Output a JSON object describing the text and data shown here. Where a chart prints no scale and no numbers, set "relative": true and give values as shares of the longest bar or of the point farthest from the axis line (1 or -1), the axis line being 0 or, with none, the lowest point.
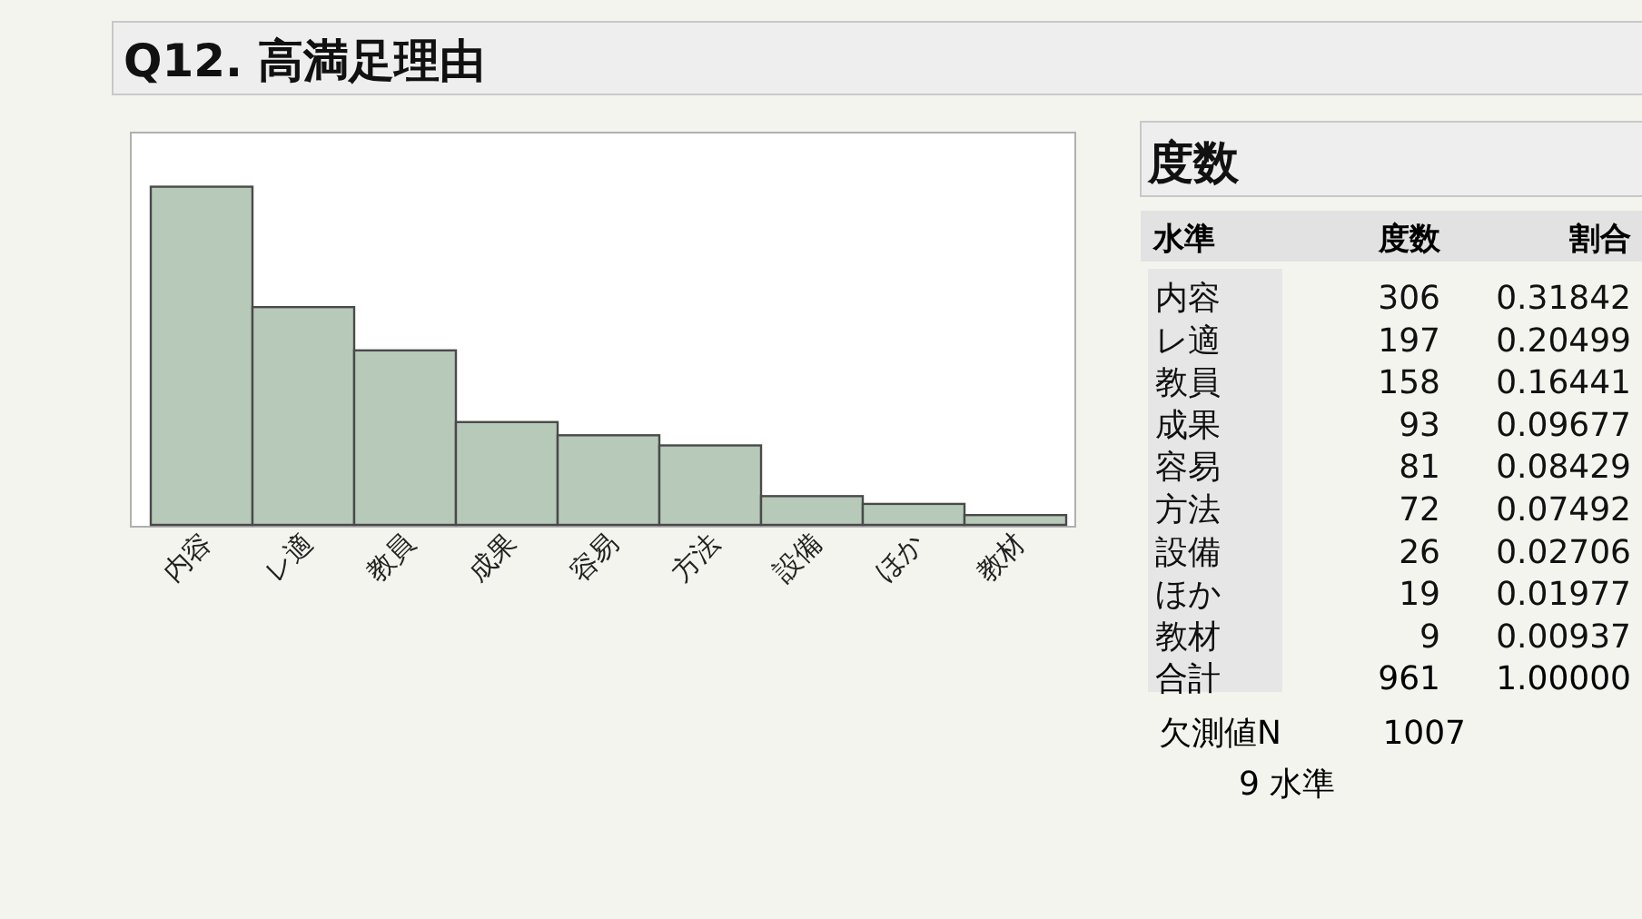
{
  "chart_data": {
    "type": "bar",
    "title": "Q12. 高満足理由",
    "categories": [
      "内容",
      "レ適",
      "教員",
      "成果",
      "容易",
      "方法",
      "設備",
      "ほか",
      "教材"
    ],
    "values": [
      1,
      0.644,
      0.516,
      0.304,
      0.265,
      0.235,
      0.085,
      0.062,
      0.029
    ],
    "relative": true,
    "color": "#b7c9b8",
    "annotations": [
      "度数",
      "水準",
      "度数",
      "割合",
      "306",
      "197",
      "158",
      "93",
      "81",
      "72",
      "26",
      "19",
      "9",
      "0.31842",
      "0.20499",
      "0.16441",
      "0.09677",
      "0.08429",
      "0.07492",
      "0.02706",
      "0.01977",
      "0.00937",
      "合計",
      "961",
      "1.00000",
      "欠測値N",
      "1007",
      "9 水準"
    ]
  }
}
